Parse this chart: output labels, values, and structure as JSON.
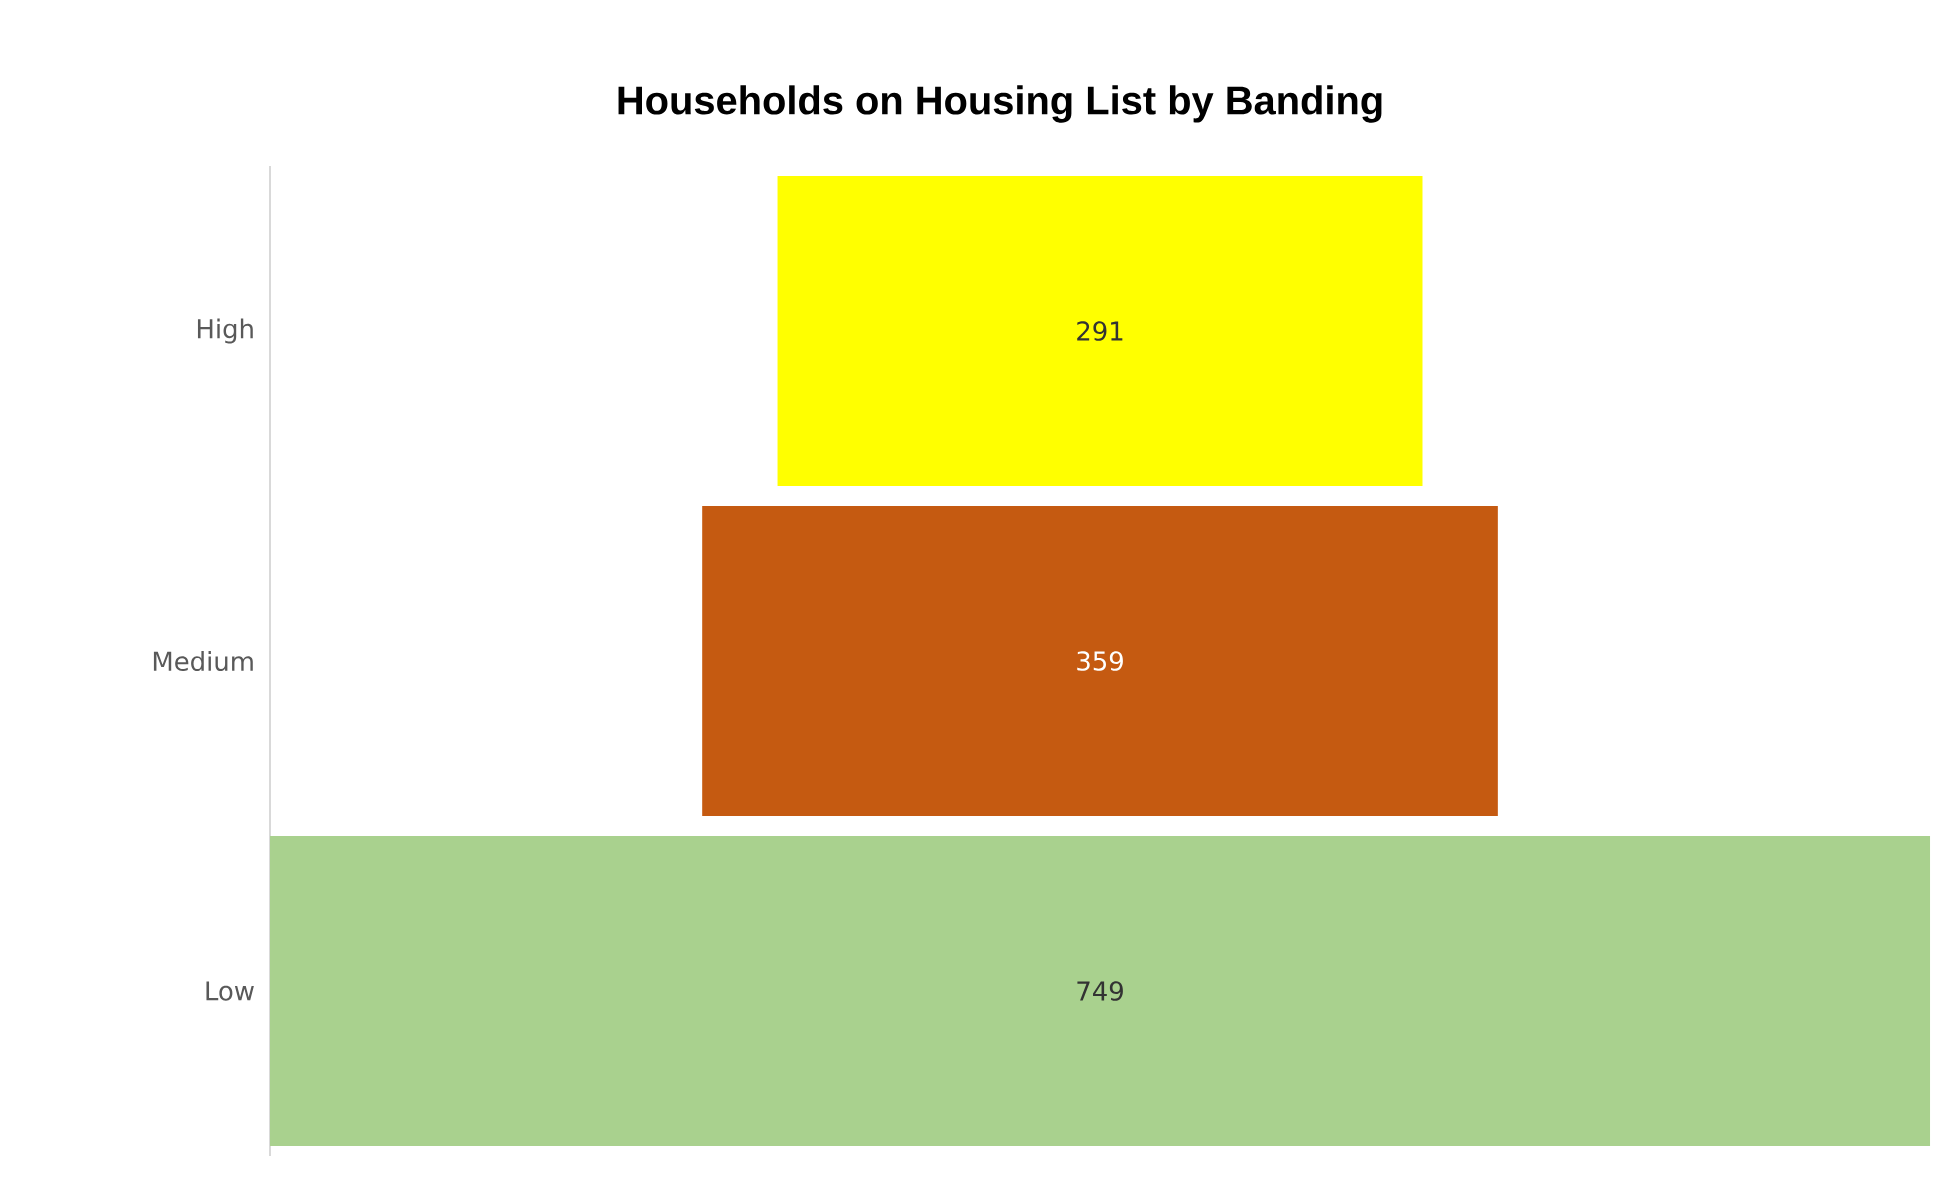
{
  "chart_data": {
    "type": "other",
    "title": "Households on Housing List by Banding",
    "categories": [
      "High",
      "Medium",
      "Low"
    ],
    "values": [
      291,
      359,
      749
    ],
    "colors": [
      "#ffff00",
      "#c55a11",
      "#a9d18e"
    ],
    "data_labels": true
  }
}
